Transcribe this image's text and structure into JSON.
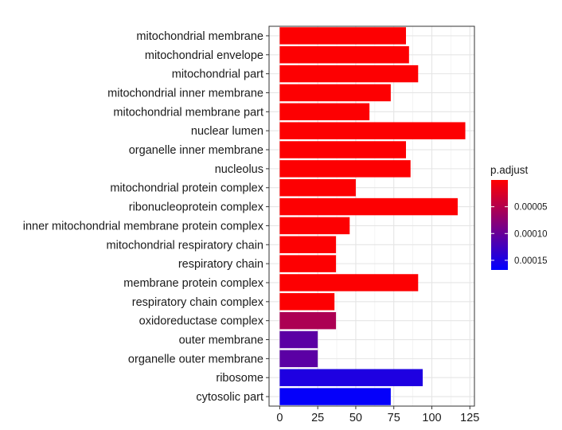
{
  "chart_data": {
    "type": "bar",
    "orientation": "horizontal",
    "title": "",
    "xlabel": "",
    "ylabel": "",
    "xlim": [
      -7,
      128
    ],
    "x_ticks": [
      0,
      25,
      50,
      75,
      100,
      125
    ],
    "grid": true,
    "legend_position": "right",
    "categories": [
      "mitochondrial membrane",
      "mitochondrial envelope",
      "mitochondrial part",
      "mitochondrial inner membrane",
      "mitochondrial membrane part",
      "nuclear lumen",
      "organelle inner membrane",
      "nucleolus",
      "mitochondrial protein complex",
      "ribonucleoprotein complex",
      "inner mitochondrial membrane protein complex",
      "mitochondrial respiratory chain",
      "respiratory chain",
      "membrane protein complex",
      "respiratory chain complex",
      "oxidoreductase complex",
      "outer membrane",
      "organelle outer membrane",
      "ribosome",
      "cytosolic part"
    ],
    "values": [
      83,
      85,
      91,
      73,
      59,
      122,
      83,
      86,
      50,
      117,
      46,
      37,
      37,
      91,
      36,
      37,
      25,
      25,
      94,
      73
    ],
    "p_adjust": [
      1e-06,
      1e-06,
      1e-06,
      1e-06,
      1e-06,
      1e-06,
      1e-06,
      1e-06,
      1e-06,
      1e-06,
      1e-06,
      1e-06,
      1e-06,
      1e-06,
      1e-06,
      5.5e-05,
      0.000108,
      0.000108,
      0.000148,
      0.000165
    ],
    "color_scale": {
      "title": "p.adjust",
      "low_color": "#FF0000",
      "high_color": "#0000FF",
      "range": [
        0.0,
        0.000168
      ],
      "ticks": [
        5e-05,
        0.0001,
        0.00015
      ],
      "tick_labels": [
        "0.00005",
        "0.00010",
        "0.00015"
      ]
    }
  }
}
